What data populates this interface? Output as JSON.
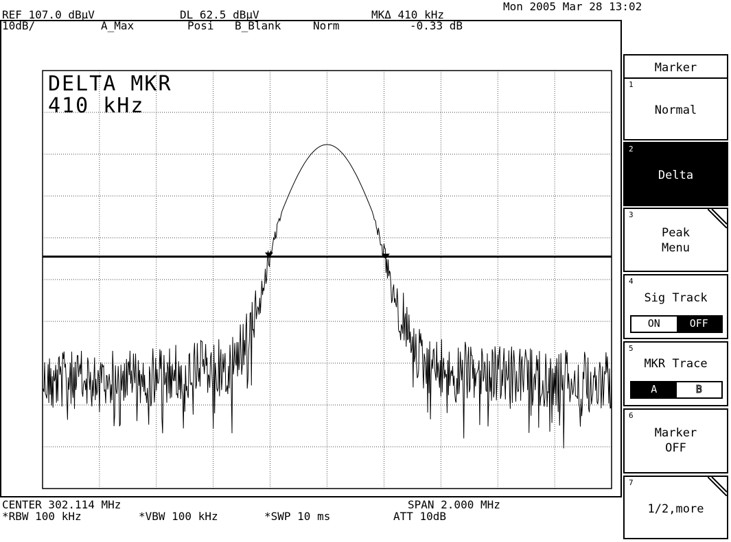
{
  "status": {
    "datetime": "Mon 2005 Mar 28 13:02",
    "ref": "REF 107.0 dBµV",
    "dl": "DL 62.5 dBµV",
    "mk_delta": "MKΔ 410 kHz",
    "scale": "10dB/",
    "trace_a": "A_Max",
    "detector": "Posi",
    "trace_b": "B_Blank",
    "mode": "Norm",
    "mk_value": "-0.33 dB"
  },
  "overlay": {
    "line1": "DELTA MKR",
    "line2": "410 kHz"
  },
  "footer": {
    "center": "CENTER 302.114 MHz",
    "span": "SPAN 2.000 MHz",
    "rbw": "*RBW 100 kHz",
    "vbw": "*VBW 100 kHz",
    "swp": "*SWP 10 ms",
    "att": "ATT 10dB"
  },
  "softkeys": {
    "title": "Marker",
    "k1": {
      "num": "1",
      "label": "Normal"
    },
    "k2": {
      "num": "2",
      "label": "Delta"
    },
    "k3": {
      "num": "3",
      "label": "Peak\nMenu"
    },
    "k4": {
      "num": "4",
      "label": "Sig Track",
      "opt_on": "ON",
      "opt_off": "OFF"
    },
    "k5": {
      "num": "5",
      "label": "MKR Trace",
      "opt_a": "A",
      "opt_b": "B"
    },
    "k6": {
      "num": "6",
      "label": "Marker\nOFF"
    },
    "k7": {
      "num": "7",
      "label": "1/2,more"
    }
  },
  "chart_data": {
    "type": "line",
    "x_range_mhz": [
      301.114,
      303.114
    ],
    "y_range_dbuv": [
      7.0,
      107.0
    ],
    "display_line_dbuv": 62.5,
    "peak": {
      "x_mhz": 302.114,
      "y_dbuv": 89.3
    },
    "markers": [
      {
        "name": "reference",
        "x_mhz": 301.91,
        "y_dbuv": 62.5
      },
      {
        "name": "delta",
        "x_mhz": 302.32,
        "y_dbuv": 62.2
      }
    ],
    "grid": true
  }
}
